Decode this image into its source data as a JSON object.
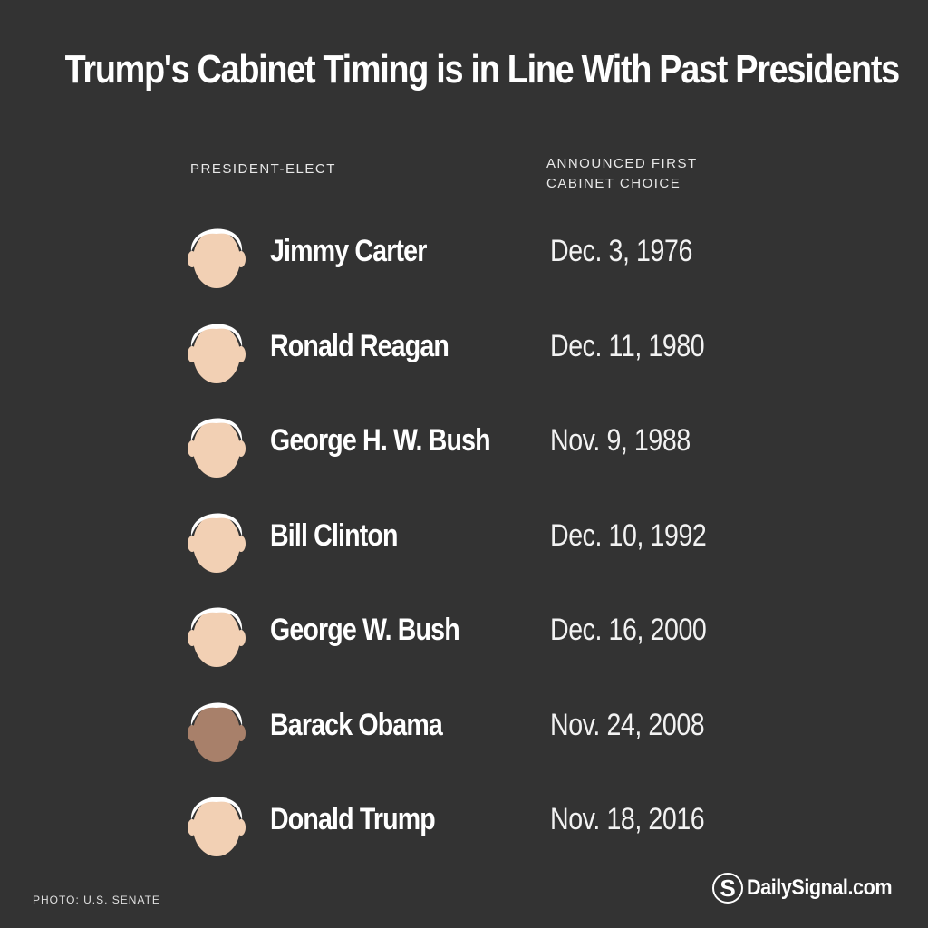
{
  "title": "Trump's Cabinet Timing is in Line With Past Presidents",
  "columns": {
    "president": "PRESIDENT-ELECT",
    "announced_line1": "ANNOUNCED FIRST",
    "announced_line2": "CABINET CHOICE"
  },
  "rows": [
    {
      "name": "Jimmy Carter",
      "date": "Dec. 3, 1976",
      "skin": "#f2d0b4",
      "hair": "#ffffff"
    },
    {
      "name": "Ronald Reagan",
      "date": "Dec. 11, 1980",
      "skin": "#f2d0b4",
      "hair": "#ffffff"
    },
    {
      "name": "George H. W. Bush",
      "date": "Nov. 9, 1988",
      "skin": "#f2d0b4",
      "hair": "#ffffff"
    },
    {
      "name": "Bill Clinton",
      "date": "Dec. 10, 1992",
      "skin": "#f2d0b4",
      "hair": "#ffffff"
    },
    {
      "name": "George W. Bush",
      "date": "Dec. 16, 2000",
      "skin": "#f2d0b4",
      "hair": "#ffffff"
    },
    {
      "name": "Barack Obama",
      "date": "Nov. 24, 2008",
      "skin": "#a8806a",
      "hair": "#ffffff"
    },
    {
      "name": "Donald Trump",
      "date": "Nov. 18, 2016",
      "skin": "#f2d0b4",
      "hair": "#ffffff"
    }
  ],
  "credit": "PHOTO: U.S. SENATE",
  "logo": {
    "mark": "S",
    "text": "DailySignal.com"
  }
}
